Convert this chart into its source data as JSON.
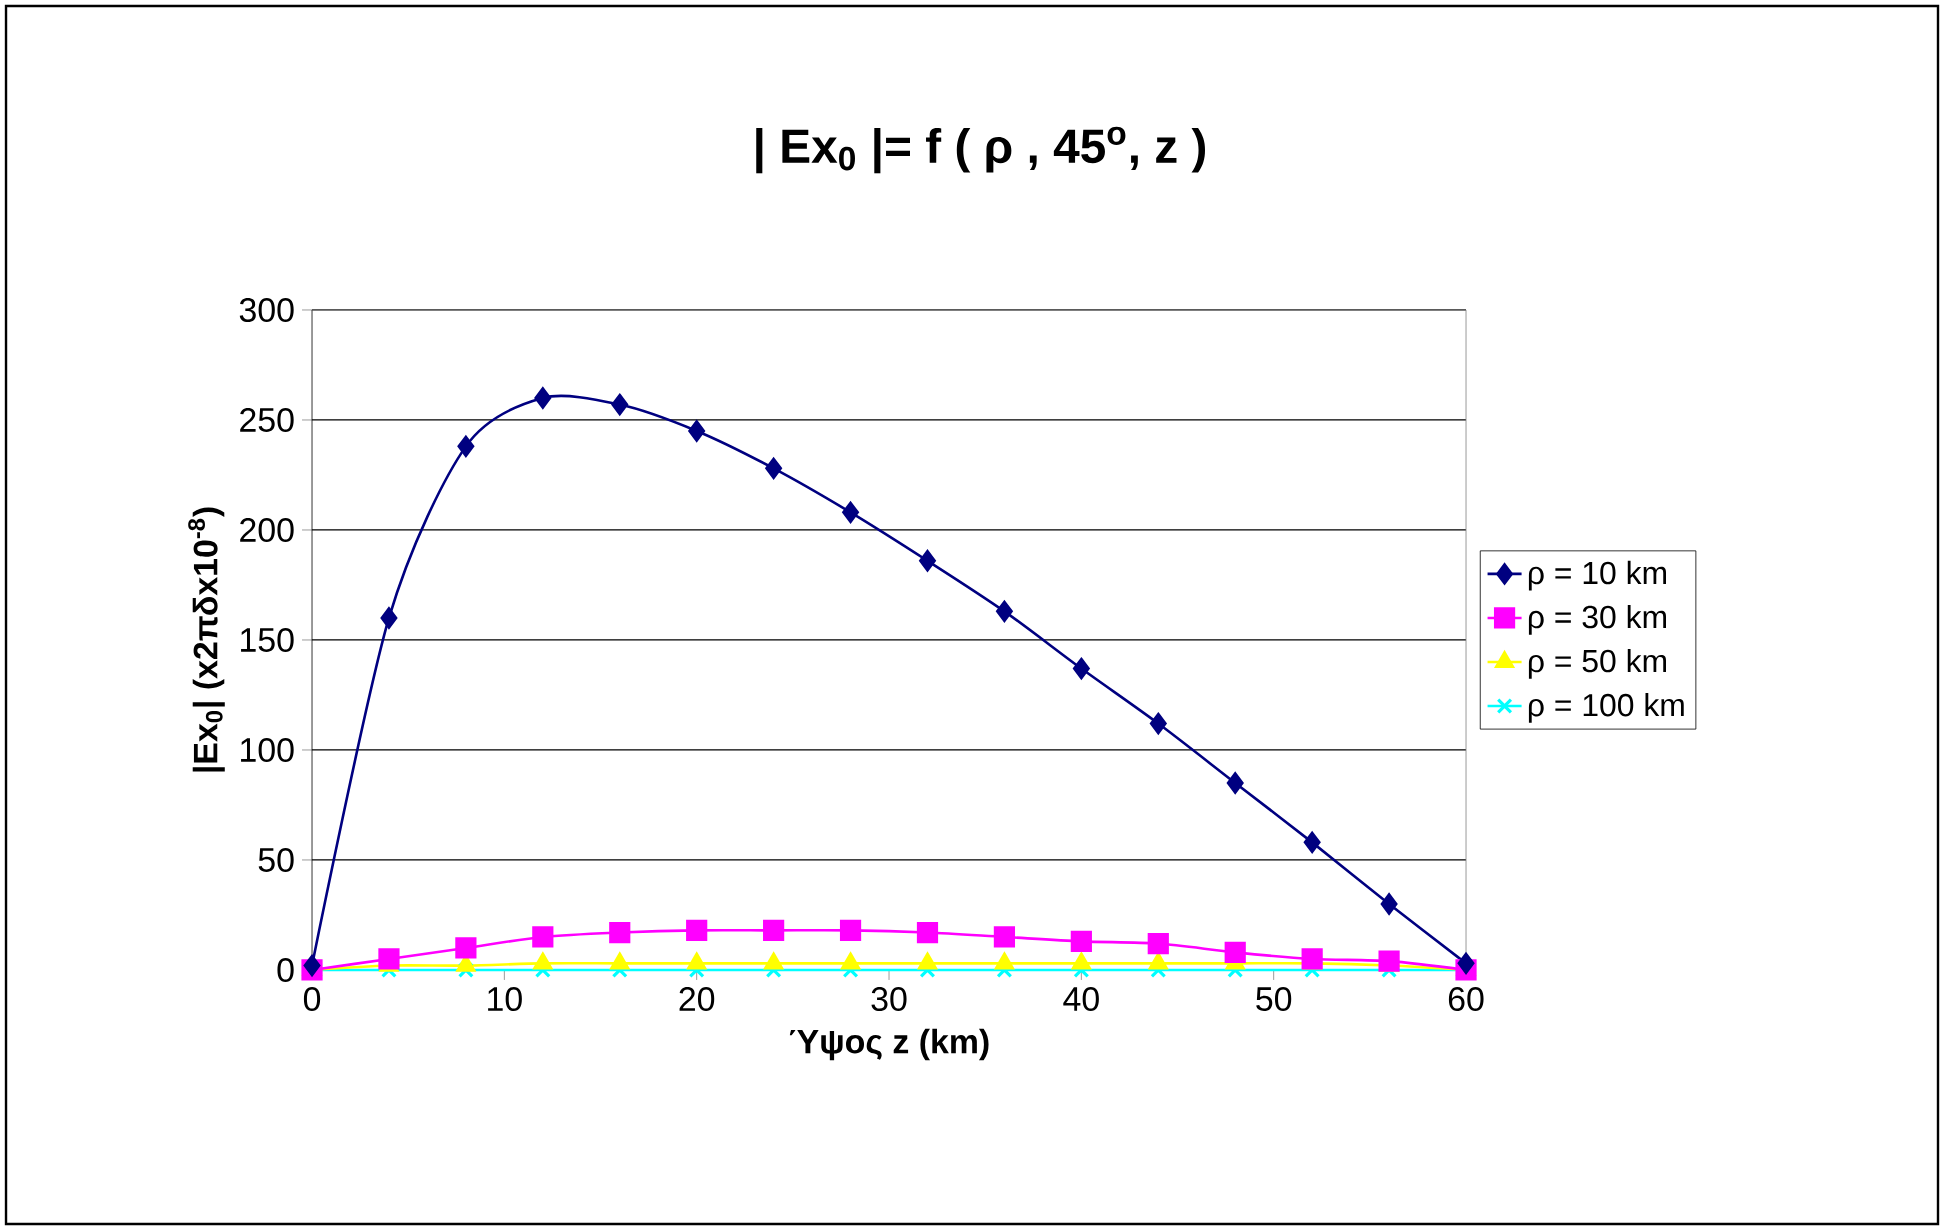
{
  "chart_data": {
    "type": "line",
    "title": "| **Ex$_{0}$** |= f ( ρ , 45$^{ο}$, z )",
    "xlabel": "Ύψος z (km)",
    "ylabel": "|Ex$_{0}$| (x2πδx10$^{-8}$)",
    "x": [
      0,
      4,
      8,
      12,
      16,
      20,
      24,
      28,
      32,
      36,
      40,
      44,
      48,
      52,
      56,
      60
    ],
    "series": [
      {
        "name": "ρ = 10 km",
        "color": "#000080",
        "marker": "diamond",
        "values": [
          2,
          160,
          238,
          260,
          257,
          245,
          228,
          208,
          186,
          163,
          137,
          112,
          85,
          58,
          30,
          3
        ]
      },
      {
        "name": "ρ = 30 km",
        "color": "#ff00ff",
        "marker": "square",
        "values": [
          0,
          5,
          10,
          15,
          17,
          18,
          18,
          18,
          17,
          15,
          13,
          12,
          8,
          5,
          4,
          0
        ]
      },
      {
        "name": "ρ = 50 km",
        "color": "#ffff00",
        "marker": "triangle",
        "values": [
          0,
          2,
          2,
          3,
          3,
          3,
          3,
          3,
          3,
          3,
          3,
          3,
          3,
          3,
          2,
          0
        ]
      },
      {
        "name": "ρ = 100 km",
        "color": "#00ffff",
        "marker": "cross",
        "values": [
          0,
          0,
          0,
          0,
          0,
          0,
          0,
          0,
          0,
          0,
          0,
          0,
          0,
          0,
          0,
          0
        ]
      }
    ],
    "xlim": [
      0,
      60
    ],
    "xticks": [
      0,
      10,
      20,
      30,
      40,
      50,
      60
    ],
    "ylim": [
      0,
      300
    ],
    "yticks": [
      0,
      50,
      100,
      150,
      200,
      250,
      300
    ],
    "grid": "y",
    "legend": "right"
  }
}
